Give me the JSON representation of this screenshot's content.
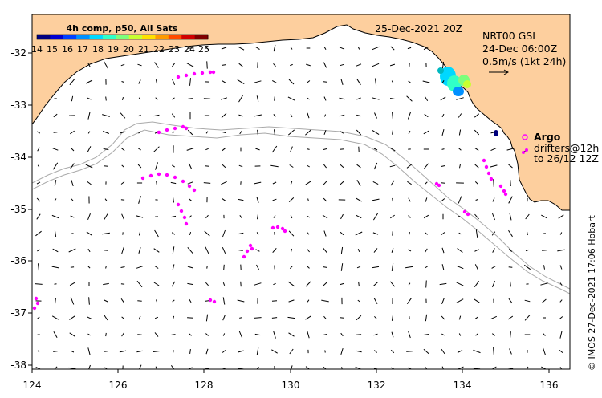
{
  "map": {
    "date": "25-Dec-2021 20Z",
    "product": "NRT00 GSL",
    "current_time": "24-Dec 06:00Z",
    "scale_label": "0.5m/s (1kt 24h)",
    "credit": "© IMOS 27-Dec-2021 17:06 Hobart",
    "colors": {
      "land": "#fdcf9e",
      "coast": "#000000",
      "contour": "#a9a9a9",
      "vectors": "#000000",
      "drifters": "#ff00ff"
    },
    "axes": {
      "x_ticks": [
        "124",
        "126",
        "128",
        "130",
        "132",
        "134",
        "136"
      ],
      "y_ticks": [
        "-32",
        "-33",
        "-34",
        "-35",
        "-36",
        "-37",
        "-38"
      ],
      "lon_range": [
        124,
        136.5
      ],
      "lat_range": [
        -38.1,
        -31.4
      ]
    }
  },
  "colorbar": {
    "title": "4h comp, p50, All Sats",
    "labels": [
      "14",
      "15",
      "16",
      "17",
      "18",
      "19",
      "20",
      "21",
      "22",
      "23",
      "24",
      "25"
    ],
    "colors": [
      "#00007f",
      "#0000d0",
      "#0040ff",
      "#0090ff",
      "#00d8ff",
      "#30ffc8",
      "#7cff7c",
      "#c8ff30",
      "#ffe000",
      "#ff9a00",
      "#ff4a00",
      "#d00000",
      "#800000"
    ]
  },
  "legend": {
    "argo_label": "Argo",
    "drifters_label": "drifters@12h",
    "drifters_to_label": "to 26/12 12Z"
  }
}
